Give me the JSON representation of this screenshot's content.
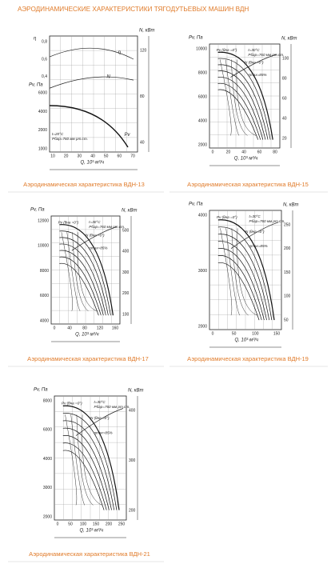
{
  "title": "АЭРОДИНАМИЧЕСКИЕ ХАРАКТЕРИСТИКИ ТЯГОДУТЬЕВЫХ МАШИН ВДН",
  "figures": [
    {
      "caption": "Аэродинамическая характеристика ВДН-13",
      "y_label": "Pv, Па",
      "y2_label": "N, кВт",
      "x_label": "Q, 10³·м³/ч",
      "eta_label": "η",
      "eta_ticks": [
        "0,4",
        "0,6",
        "0,8"
      ],
      "left_ticks": [
        "1000",
        "2000",
        "4000",
        "6000"
      ],
      "right_ticks": [
        "40",
        "80",
        "120"
      ],
      "x_ticks": [
        "10",
        "20",
        "30",
        "40",
        "50",
        "60",
        "70"
      ],
      "curves": [
        "η",
        "N",
        "Pv"
      ],
      "notes": [
        "t=20°C",
        "Рбар=760 мм рт.ст."
      ]
    },
    {
      "caption": "Аэродинамическая характеристика ВДН-15",
      "y_label": "Pv, Па",
      "y2_label": "N, кВт",
      "x_label": "Q, 10³·м³/ч",
      "left_ticks": [
        "2000",
        "4000",
        "6000",
        "8000",
        "10000"
      ],
      "right_ticks": [
        "20",
        "40",
        "60",
        "80",
        "100"
      ],
      "x_ticks": [
        "0",
        "20",
        "40",
        "60",
        "80"
      ],
      "curves": [
        "Pv (θна =0°)",
        "N (θна =0°)",
        "ηmax=85%"
      ],
      "notes": [
        "t=30°C",
        "Рбар=760 мм рт.ст."
      ]
    },
    {
      "caption": "Аэродинамическая характеристика ВДН-17",
      "y_label": "Pv, Па",
      "y2_label": "N, кВт",
      "x_label": "Q, 10³·м³/ч",
      "left_ticks": [
        "4000",
        "6000",
        "8000",
        "10000",
        "12000"
      ],
      "right_ticks": [
        "100",
        "200",
        "300",
        "400",
        "500"
      ],
      "x_ticks": [
        "0",
        "40",
        "80",
        "120",
        "160"
      ],
      "curves": [
        "Pv (θна =0°)",
        "N (θна =0°)",
        "ηmax=85%"
      ],
      "notes": [
        "t=30°C",
        "Рбар=760 мм рт.ст."
      ]
    },
    {
      "caption": "Аэродинамическая характеристика ВДН-19",
      "y_label": "Pv, Па",
      "y2_label": "N, кВт",
      "x_label": "Q, 10³·м³/ч",
      "left_ticks": [
        "2000",
        "3000",
        "4000"
      ],
      "right_ticks": [
        "50",
        "100",
        "150",
        "200",
        "250"
      ],
      "x_ticks": [
        "0",
        "50",
        "100",
        "150"
      ],
      "curves": [
        "Pv (θна =0°)",
        "N (θна =0°)",
        "ηmax=85%"
      ],
      "notes": [
        "t=30°C",
        "Рбар=760 мм рт.ст."
      ]
    },
    {
      "caption": "Аэродинамическая характеристика ВДН-21",
      "y_label": "Pv, Па",
      "y2_label": "N, кВт",
      "x_label": "Q, 10³·м³/ч",
      "left_ticks": [
        "2000",
        "3000",
        "4000",
        "6000",
        "8000"
      ],
      "right_ticks": [
        "200",
        "300",
        "400"
      ],
      "x_ticks": [
        "0",
        "50",
        "100",
        "150",
        "200",
        "250"
      ],
      "curves": [
        "Pv (θна =0°)",
        "N (θна =0°)",
        "ηmax=85%"
      ],
      "notes": [
        "t=30°C",
        "Рбар=760 мм рт.ст."
      ]
    }
  ]
}
